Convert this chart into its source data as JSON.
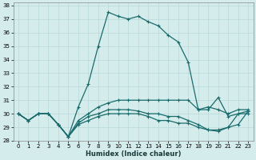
{
  "xlabel": "Humidex (Indice chaleur)",
  "background_color": "#d5ecec",
  "grid_color": "#b8d8d8",
  "line_color": "#1a6b6b",
  "xlim": [
    -0.5,
    23.5
  ],
  "ylim": [
    28,
    38.2
  ],
  "yticks": [
    28,
    29,
    30,
    31,
    32,
    33,
    34,
    35,
    36,
    37,
    38
  ],
  "xticks": [
    0,
    1,
    2,
    3,
    4,
    5,
    6,
    7,
    8,
    9,
    10,
    11,
    12,
    13,
    14,
    15,
    16,
    17,
    18,
    19,
    20,
    21,
    22,
    23
  ],
  "series": [
    {
      "x": [
        0,
        1,
        2,
        3,
        4,
        5,
        6,
        7,
        8,
        9,
        10,
        11,
        12,
        13,
        14,
        15,
        16,
        17,
        18,
        19,
        20,
        21,
        22,
        23
      ],
      "y": [
        30.0,
        29.5,
        30.0,
        30.0,
        29.2,
        28.3,
        30.5,
        32.2,
        35.0,
        37.5,
        37.2,
        37.0,
        37.2,
        36.8,
        36.5,
        35.8,
        35.3,
        33.8,
        30.3,
        30.3,
        31.2,
        29.8,
        30.0,
        30.0
      ]
    },
    {
      "x": [
        0,
        1,
        2,
        3,
        4,
        5,
        6,
        7,
        8,
        9,
        10,
        11,
        12,
        13,
        14,
        15,
        16,
        17,
        18,
        19,
        20,
        21,
        22,
        23
      ],
      "y": [
        30.0,
        29.5,
        30.0,
        30.0,
        29.2,
        28.3,
        29.5,
        30.0,
        30.5,
        30.8,
        31.0,
        31.0,
        31.0,
        31.0,
        31.0,
        31.0,
        31.0,
        31.0,
        30.3,
        30.5,
        30.3,
        30.0,
        30.3,
        30.3
      ]
    },
    {
      "x": [
        0,
        1,
        2,
        3,
        4,
        5,
        6,
        7,
        8,
        9,
        10,
        11,
        12,
        13,
        14,
        15,
        16,
        17,
        18,
        19,
        20,
        21,
        22,
        23
      ],
      "y": [
        30.0,
        29.5,
        30.0,
        30.0,
        29.2,
        28.3,
        29.3,
        29.8,
        30.0,
        30.3,
        30.3,
        30.3,
        30.2,
        30.0,
        30.0,
        29.8,
        29.8,
        29.5,
        29.2,
        28.8,
        28.8,
        29.0,
        30.0,
        30.2
      ]
    },
    {
      "x": [
        0,
        1,
        2,
        3,
        4,
        5,
        6,
        7,
        8,
        9,
        10,
        11,
        12,
        13,
        14,
        15,
        16,
        17,
        18,
        19,
        20,
        21,
        22,
        23
      ],
      "y": [
        30.0,
        29.5,
        30.0,
        30.0,
        29.2,
        28.3,
        29.2,
        29.5,
        29.8,
        30.0,
        30.0,
        30.0,
        30.0,
        29.8,
        29.5,
        29.5,
        29.3,
        29.3,
        29.0,
        28.8,
        28.7,
        29.0,
        29.2,
        30.2
      ]
    }
  ]
}
